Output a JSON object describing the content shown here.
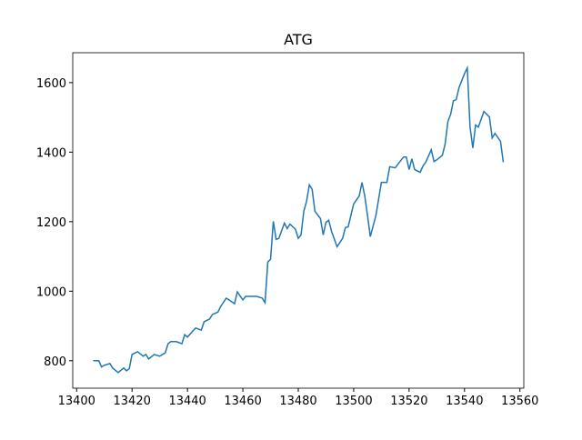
{
  "chart_data": {
    "type": "line",
    "title": "ATG",
    "x": [
      13406,
      13408,
      13409,
      13410,
      13412,
      13413,
      13415,
      13417,
      13418,
      13419,
      13420,
      13422,
      13424,
      13425,
      13426,
      13428,
      13430,
      13432,
      13433,
      13434,
      13436,
      13438,
      13439,
      13440,
      13442,
      13443,
      13445,
      13446,
      13448,
      13449,
      13451,
      13452,
      13454,
      13455,
      13457,
      13458,
      13460,
      13461,
      13463,
      13465,
      13467,
      13468,
      13469,
      13470,
      13471,
      13472,
      13473,
      13475,
      13476,
      13477,
      13479,
      13480,
      13481,
      13482,
      13483,
      13484,
      13485,
      13486,
      13488,
      13489,
      13490,
      13491,
      13492,
      13494,
      13496,
      13497,
      13498,
      13500,
      13502,
      13503,
      13504,
      13505,
      13506,
      13508,
      13510,
      13512,
      13513,
      13515,
      13517,
      13518,
      13519,
      13520,
      13521,
      13522,
      13524,
      13525,
      13526,
      13528,
      13529,
      13530,
      13532,
      13533,
      13534,
      13535,
      13536,
      13537,
      13538,
      13540,
      13541,
      13542,
      13543,
      13544,
      13545,
      13547,
      13549,
      13550,
      13551,
      13553,
      13554
    ],
    "series": [
      {
        "color": "#1f77b4",
        "values": [
          800,
          800,
          782,
          787,
          792,
          779,
          766,
          779,
          771,
          777,
          818,
          826,
          813,
          818,
          805,
          818,
          813,
          823,
          849,
          855,
          855,
          849,
          875,
          868,
          886,
          894,
          888,
          912,
          920,
          933,
          940,
          956,
          980,
          975,
          964,
          998,
          975,
          985,
          985,
          985,
          980,
          967,
          1084,
          1092,
          1201,
          1149,
          1152,
          1196,
          1180,
          1193,
          1178,
          1152,
          1162,
          1230,
          1259,
          1306,
          1293,
          1230,
          1209,
          1162,
          1198,
          1204,
          1172,
          1128,
          1152,
          1183,
          1185,
          1251,
          1274,
          1313,
          1274,
          1217,
          1157,
          1217,
          1313,
          1313,
          1358,
          1355,
          1376,
          1386,
          1386,
          1350,
          1381,
          1350,
          1342,
          1360,
          1371,
          1407,
          1373,
          1378,
          1391,
          1423,
          1488,
          1509,
          1548,
          1551,
          1585,
          1626,
          1642,
          1472,
          1412,
          1478,
          1472,
          1517,
          1501,
          1441,
          1454,
          1431,
          1371
        ]
      }
    ],
    "xlim": [
      13398.6,
      13561.4
    ],
    "ylim": [
      721,
      1686
    ],
    "xticks": [
      13400,
      13420,
      13440,
      13460,
      13480,
      13500,
      13520,
      13540,
      13560
    ],
    "yticks": [
      800,
      1000,
      1200,
      1400,
      1600
    ]
  }
}
